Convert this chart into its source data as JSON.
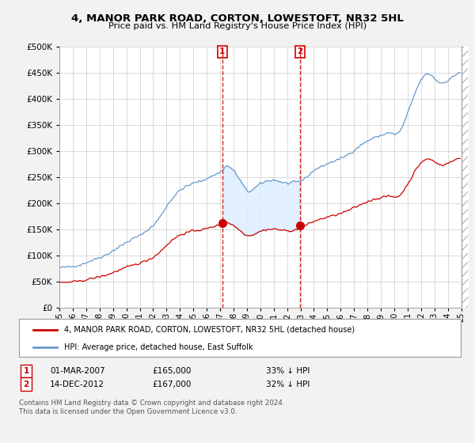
{
  "title": "4, MANOR PARK ROAD, CORTON, LOWESTOFT, NR32 5HL",
  "subtitle": "Price paid vs. HM Land Registry's House Price Index (HPI)",
  "legend_red": "4, MANOR PARK ROAD, CORTON, LOWESTOFT, NR32 5HL (detached house)",
  "legend_blue": "HPI: Average price, detached house, East Suffolk",
  "transaction1_label": "1",
  "transaction1_date": "01-MAR-2007",
  "transaction1_price": "£165,000",
  "transaction1_hpi": "33% ↓ HPI",
  "transaction2_label": "2",
  "transaction2_date": "14-DEC-2012",
  "transaction2_price": "£167,000",
  "transaction2_hpi": "32% ↓ HPI",
  "footer": "Contains HM Land Registry data © Crown copyright and database right 2024.\nThis data is licensed under the Open Government Licence v3.0.",
  "ylim": [
    0,
    500000
  ],
  "yticks": [
    0,
    50000,
    100000,
    150000,
    200000,
    250000,
    300000,
    350000,
    400000,
    450000,
    500000
  ],
  "xlim_start": 1995.0,
  "xlim_end": 2025.5,
  "transaction1_x": 2007.17,
  "transaction2_x": 2012.96,
  "background_color": "#f2f2f2",
  "plot_bg_color": "#ffffff",
  "red_color": "#cc0000",
  "blue_color": "#6699cc",
  "highlight_color": "#ddeeff",
  "hatch_color": "#cccccc"
}
